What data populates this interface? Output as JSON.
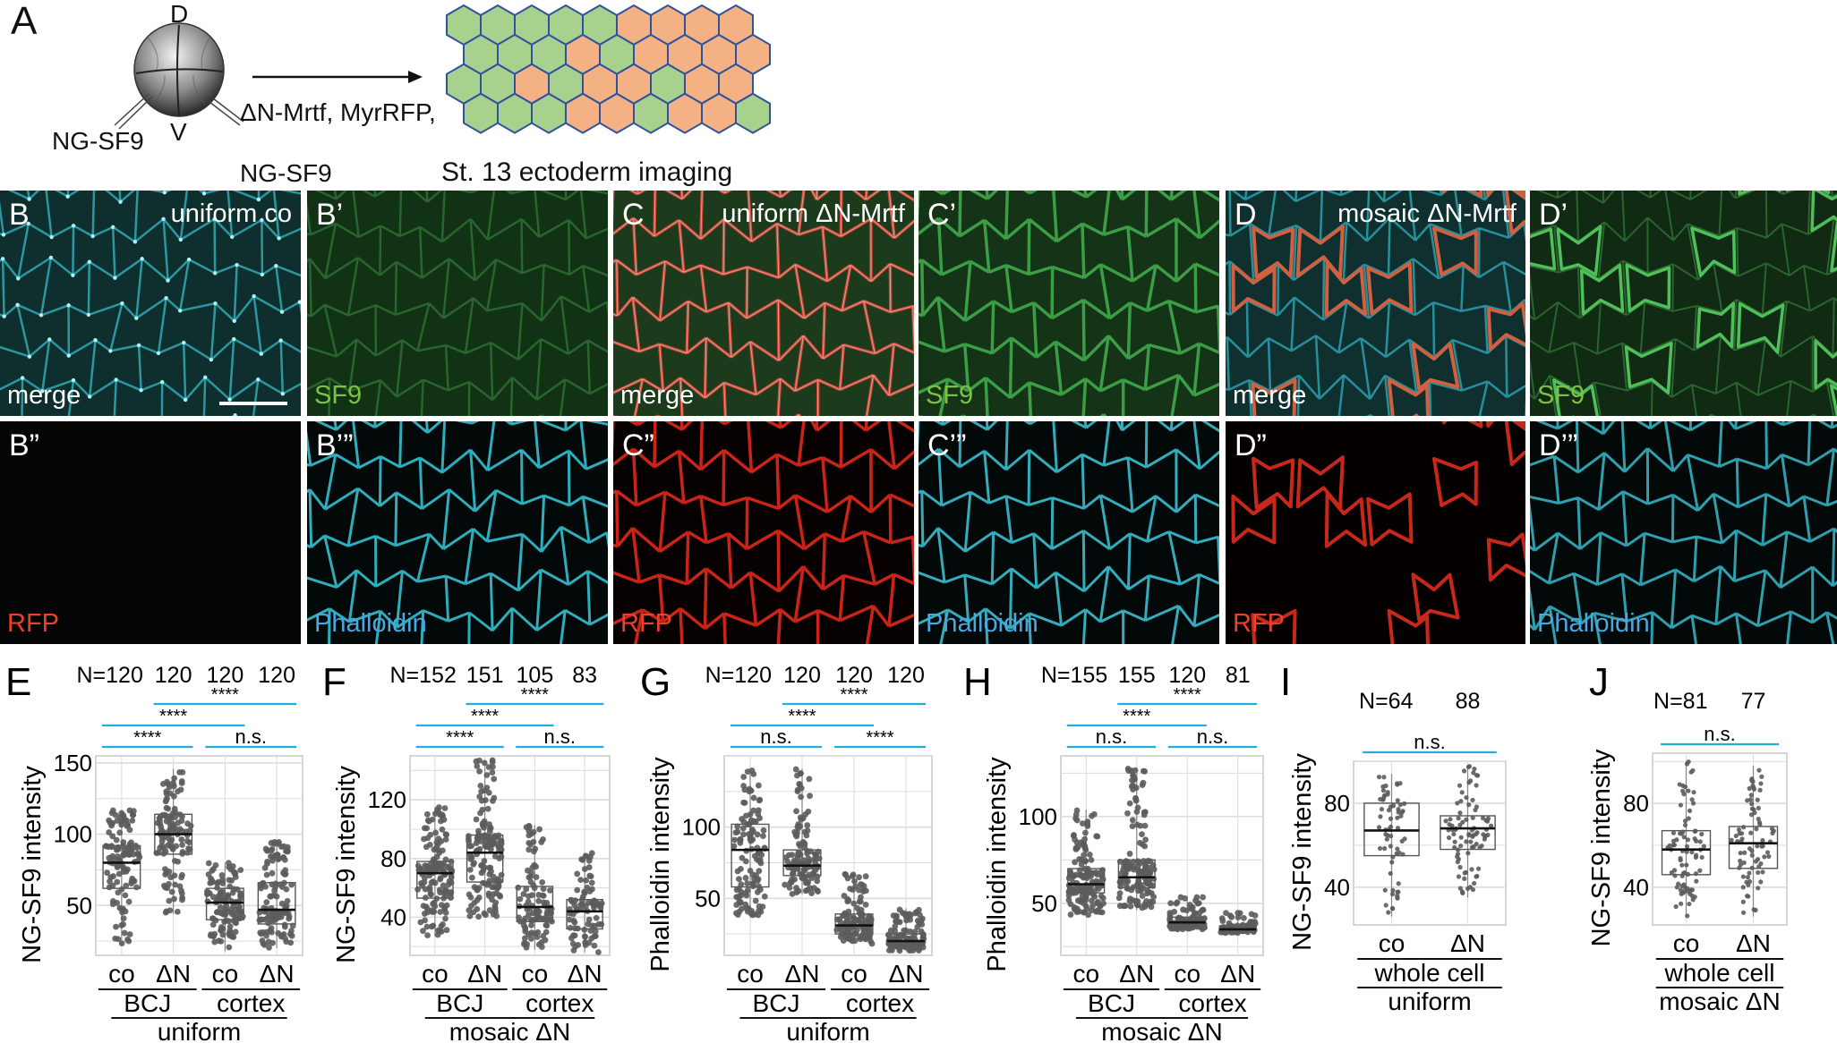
{
  "panel_a": {
    "label": "A",
    "dorsal": "D",
    "ventral": "V",
    "left_injection": "NG-SF9",
    "right_injection_line1": "ΔN-Mrtf, MyrRFP,",
    "right_injection_line2": "NG-SF9",
    "caption": "St. 13 ectoderm imaging",
    "colors": {
      "control_cell": "#a9d18e",
      "mrtf_cell": "#f4b183",
      "cell_outline": "#2f52a0"
    }
  },
  "micrographs": [
    {
      "label": "B",
      "title": "uniform co",
      "channel": "merge",
      "scale_bar": true
    },
    {
      "label": "B’",
      "title": "",
      "channel": "SF9"
    },
    {
      "label": "C",
      "title": "uniform ΔN-Mrtf",
      "channel": "merge"
    },
    {
      "label": "C’",
      "title": "",
      "channel": "SF9"
    },
    {
      "label": "D",
      "title": "mosaic ΔN-Mrtf",
      "channel": "merge"
    },
    {
      "label": "D’",
      "title": "",
      "channel": "SF9"
    },
    {
      "label": "B”",
      "title": "",
      "channel": "RFP"
    },
    {
      "label": "B’”",
      "title": "",
      "channel": "Phalloidin"
    },
    {
      "label": "C”",
      "title": "",
      "channel": "RFP"
    },
    {
      "label": "C’”",
      "title": "",
      "channel": "Phalloidin"
    },
    {
      "label": "D”",
      "title": "",
      "channel": "RFP"
    },
    {
      "label": "D’”",
      "title": "",
      "channel": "Phalloidin"
    }
  ],
  "channel_colors": {
    "merge": "#ffffff",
    "SF9": "#7cc242",
    "RFP": "#e8412c",
    "Phalloidin": "#4aa8e0"
  },
  "significance_color": "#29a9e0",
  "chart_data": [
    {
      "panel": "E",
      "type": "box",
      "ylabel": "NG-SF9 intensity",
      "ylim": [
        15,
        155
      ],
      "yticks": [
        50,
        100,
        150
      ],
      "n_labels": [
        "N=120",
        "120",
        "120",
        "120"
      ],
      "categories": [
        "co",
        "ΔN",
        "co",
        "ΔN"
      ],
      "groups": [
        {
          "label": "BCJ",
          "span": [
            0,
            1
          ]
        },
        {
          "label": "cortex",
          "span": [
            2,
            3
          ]
        }
      ],
      "supergroup": "uniform",
      "series": [
        {
          "n": 120,
          "min": 22,
          "q1": 62,
          "median": 80,
          "q3": 92,
          "max": 117
        },
        {
          "n": 120,
          "min": 44,
          "q1": 86,
          "median": 100,
          "q3": 114,
          "max": 146
        },
        {
          "n": 120,
          "min": 18,
          "q1": 40,
          "median": 52,
          "q3": 62,
          "max": 80
        },
        {
          "n": 120,
          "min": 20,
          "q1": 37,
          "median": 47,
          "q3": 66,
          "max": 95
        }
      ],
      "comparisons": [
        {
          "pair": [
            0,
            1
          ],
          "label": "****",
          "level": 1
        },
        {
          "pair": [
            2,
            3
          ],
          "label": "n.s.",
          "level": 1
        },
        {
          "pair": [
            0,
            2
          ],
          "label": "****",
          "level": 2
        },
        {
          "pair": [
            1,
            3
          ],
          "label": "****",
          "level": 3
        }
      ]
    },
    {
      "panel": "F",
      "type": "box",
      "ylabel": "NG-SF9 intensity",
      "ylim": [
        14,
        150
      ],
      "yticks": [
        40,
        80,
        120
      ],
      "n_labels": [
        "N=152",
        "151",
        "105",
        "83"
      ],
      "categories": [
        "co",
        "ΔN",
        "co",
        "ΔN"
      ],
      "groups": [
        {
          "label": "BCJ",
          "span": [
            0,
            1
          ]
        },
        {
          "label": "cortex",
          "span": [
            2,
            3
          ]
        }
      ],
      "supergroup": "mosaic ΔN",
      "series": [
        {
          "n": 152,
          "min": 27,
          "q1": 53,
          "median": 70,
          "q3": 78,
          "max": 115
        },
        {
          "n": 151,
          "min": 40,
          "q1": 64,
          "median": 84,
          "q3": 96,
          "max": 147
        },
        {
          "n": 105,
          "min": 18,
          "q1": 37,
          "median": 47,
          "q3": 61,
          "max": 103
        },
        {
          "n": 83,
          "min": 16,
          "q1": 32,
          "median": 44,
          "q3": 52,
          "max": 84
        }
      ],
      "comparisons": [
        {
          "pair": [
            0,
            1
          ],
          "label": "****",
          "level": 1
        },
        {
          "pair": [
            2,
            3
          ],
          "label": "n.s.",
          "level": 1
        },
        {
          "pair": [
            0,
            2
          ],
          "label": "****",
          "level": 2
        },
        {
          "pair": [
            1,
            3
          ],
          "label": "****",
          "level": 3
        }
      ]
    },
    {
      "panel": "G",
      "type": "box",
      "ylabel": "Phalloidin intensity",
      "ylim": [
        10,
        150
      ],
      "yticks": [
        50,
        100
      ],
      "n_labels": [
        "N=120",
        "120",
        "120",
        "120"
      ],
      "categories": [
        "co",
        "ΔN",
        "co",
        "ΔN"
      ],
      "groups": [
        {
          "label": "BCJ",
          "span": [
            0,
            1
          ]
        },
        {
          "label": "cortex",
          "span": [
            2,
            3
          ]
        }
      ],
      "supergroup": "uniform",
      "series": [
        {
          "n": 120,
          "min": 38,
          "q1": 58,
          "median": 84,
          "q3": 102,
          "max": 140
        },
        {
          "n": 120,
          "min": 53,
          "q1": 66,
          "median": 73,
          "q3": 84,
          "max": 141
        },
        {
          "n": 120,
          "min": 18,
          "q1": 25,
          "median": 31,
          "q3": 39,
          "max": 67
        },
        {
          "n": 120,
          "min": 13,
          "q1": 17,
          "median": 20,
          "q3": 25,
          "max": 43
        }
      ],
      "comparisons": [
        {
          "pair": [
            0,
            1
          ],
          "label": "n.s.",
          "level": 1
        },
        {
          "pair": [
            2,
            3
          ],
          "label": "****",
          "level": 1
        },
        {
          "pair": [
            0,
            2
          ],
          "label": "****",
          "level": 2
        },
        {
          "pair": [
            1,
            3
          ],
          "label": "****",
          "level": 3
        }
      ]
    },
    {
      "panel": "H",
      "type": "box",
      "ylabel": "Phalloidin intensity",
      "ylim": [
        20,
        135
      ],
      "yticks": [
        50,
        100
      ],
      "n_labels": [
        "N=155",
        "155",
        "120",
        "81"
      ],
      "categories": [
        "co",
        "ΔN",
        "co",
        "ΔN"
      ],
      "groups": [
        {
          "label": "BCJ",
          "span": [
            0,
            1
          ]
        },
        {
          "label": "cortex",
          "span": [
            2,
            3
          ]
        }
      ],
      "supergroup": "mosaic ΔN",
      "series": [
        {
          "n": 155,
          "min": 43,
          "q1": 56,
          "median": 61,
          "q3": 70,
          "max": 104
        },
        {
          "n": 155,
          "min": 46,
          "q1": 59,
          "median": 65,
          "q3": 75,
          "max": 128
        },
        {
          "n": 120,
          "min": 35,
          "q1": 37,
          "median": 39,
          "q3": 42,
          "max": 54
        },
        {
          "n": 81,
          "min": 33,
          "q1": 34,
          "median": 35,
          "q3": 37,
          "max": 46
        }
      ],
      "comparisons": [
        {
          "pair": [
            0,
            1
          ],
          "label": "n.s.",
          "level": 1
        },
        {
          "pair": [
            2,
            3
          ],
          "label": "n.s.",
          "level": 1
        },
        {
          "pair": [
            0,
            2
          ],
          "label": "****",
          "level": 2
        },
        {
          "pair": [
            1,
            3
          ],
          "label": "****",
          "level": 3
        }
      ]
    },
    {
      "panel": "I",
      "type": "box",
      "ylabel": "NG-SF9 intensity",
      "ylim": [
        22,
        100
      ],
      "yticks": [
        40,
        80
      ],
      "n_labels": [
        "N=64",
        "88"
      ],
      "categories": [
        "co",
        "ΔN"
      ],
      "groups": [
        {
          "label": "whole cell",
          "span": [
            0,
            1
          ]
        }
      ],
      "supergroup": "uniform",
      "series": [
        {
          "n": 64,
          "min": 26,
          "q1": 55,
          "median": 67,
          "q3": 80,
          "max": 94
        },
        {
          "n": 88,
          "min": 35,
          "q1": 58,
          "median": 68,
          "q3": 74,
          "max": 98
        }
      ],
      "comparisons": [
        {
          "pair": [
            0,
            1
          ],
          "label": "n.s.",
          "level": 1
        }
      ]
    },
    {
      "panel": "J",
      "type": "box",
      "ylabel": "NG-SF9 intensity",
      "ylim": [
        22,
        104
      ],
      "yticks": [
        40,
        80
      ],
      "n_labels": [
        "N=81",
        "77"
      ],
      "categories": [
        "co",
        "ΔN"
      ],
      "groups": [
        {
          "label": "whole cell",
          "span": [
            0,
            1
          ]
        }
      ],
      "supergroup": "mosaic ΔN",
      "series": [
        {
          "n": 81,
          "min": 26,
          "q1": 46,
          "median": 58,
          "q3": 67,
          "max": 100
        },
        {
          "n": 77,
          "min": 26,
          "q1": 49,
          "median": 61,
          "q3": 69,
          "max": 98
        }
      ],
      "comparisons": [
        {
          "pair": [
            0,
            1
          ],
          "label": "n.s.",
          "level": 1
        }
      ]
    }
  ]
}
